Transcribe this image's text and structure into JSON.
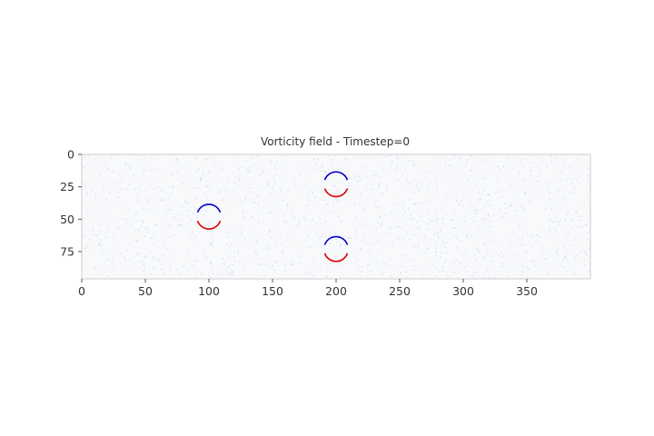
{
  "chart_data": {
    "type": "heatmap",
    "title": "Vorticity field - Timestep=0",
    "xlabel": "",
    "ylabel": "",
    "xlim": [
      0,
      400
    ],
    "ylim": [
      96,
      0
    ],
    "x_ticks": [
      0,
      50,
      100,
      150,
      200,
      250,
      300,
      350
    ],
    "x_tick_labels": [
      "0",
      "50",
      "100",
      "150",
      "200",
      "250",
      "300",
      "350"
    ],
    "y_ticks": [
      0,
      25,
      50,
      75
    ],
    "y_tick_labels": [
      "0",
      "25",
      "50",
      "75"
    ],
    "colormap": "bwr",
    "grid": false,
    "background": "#f8f9fb",
    "obstacles": [
      {
        "cx": 100,
        "cy": 48,
        "r": 9.5
      },
      {
        "cx": 200,
        "cy": 23,
        "r": 9.5
      },
      {
        "cx": 200,
        "cy": 73,
        "r": 9.5
      }
    ],
    "colors": {
      "positive": "#0000cc",
      "negative": "#dd0000",
      "noise": "#c8d0e4"
    }
  }
}
